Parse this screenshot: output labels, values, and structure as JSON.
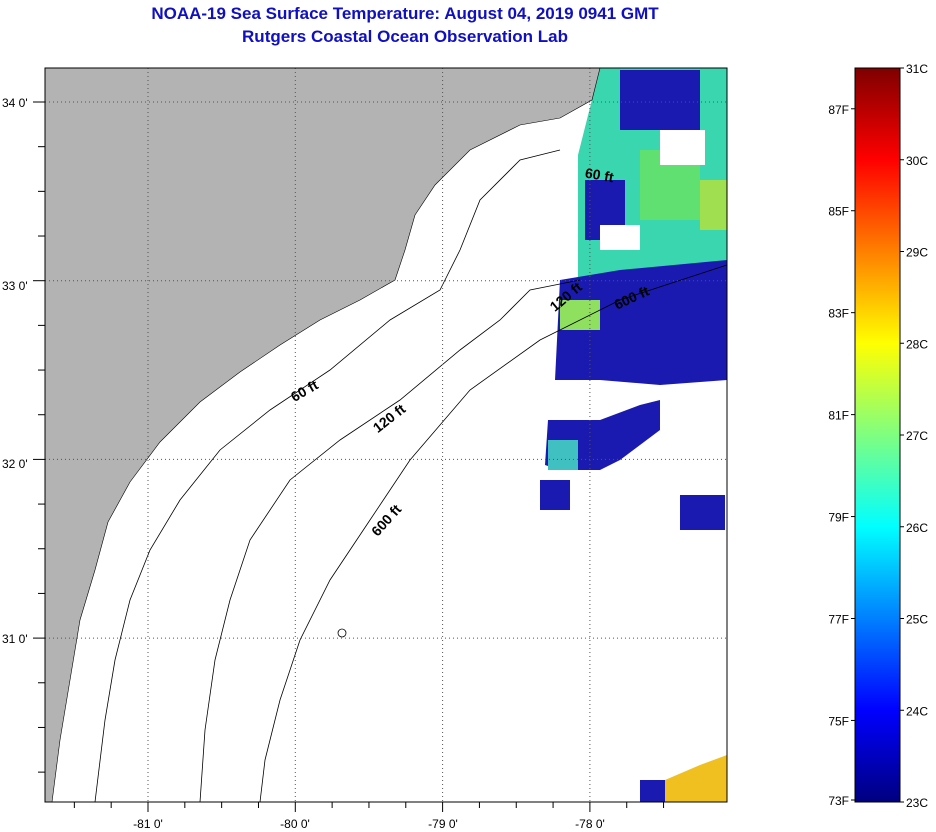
{
  "header": {
    "title": "NOAA-19 Sea Surface Temperature:  August 04, 2019 0941 GMT",
    "subtitle": "Rutgers Coastal Ocean Observation Lab"
  },
  "map": {
    "lat_labels": [
      "34 0'",
      "33 0'",
      "32 0'",
      "31 0'"
    ],
    "lon_labels": [
      "-81 0'",
      "-80 0'",
      "-79 0'",
      "-78 0'"
    ],
    "contour_labels": [
      "60 ft",
      "120 ft",
      "600 ft",
      "60 ft",
      "120 ft",
      "600 ft"
    ],
    "land_color": "#b3b3b3",
    "ocean_color": "#ffffff"
  },
  "colorbar": {
    "fahrenheit_labels": [
      "87F",
      "85F",
      "83F",
      "81F",
      "79F",
      "77F",
      "75F",
      "73F"
    ],
    "celsius_labels": [
      "31C",
      "30C",
      "29C",
      "28C",
      "27C",
      "26C",
      "25C",
      "24C",
      "23C"
    ],
    "range_c": [
      23,
      31
    ]
  }
}
